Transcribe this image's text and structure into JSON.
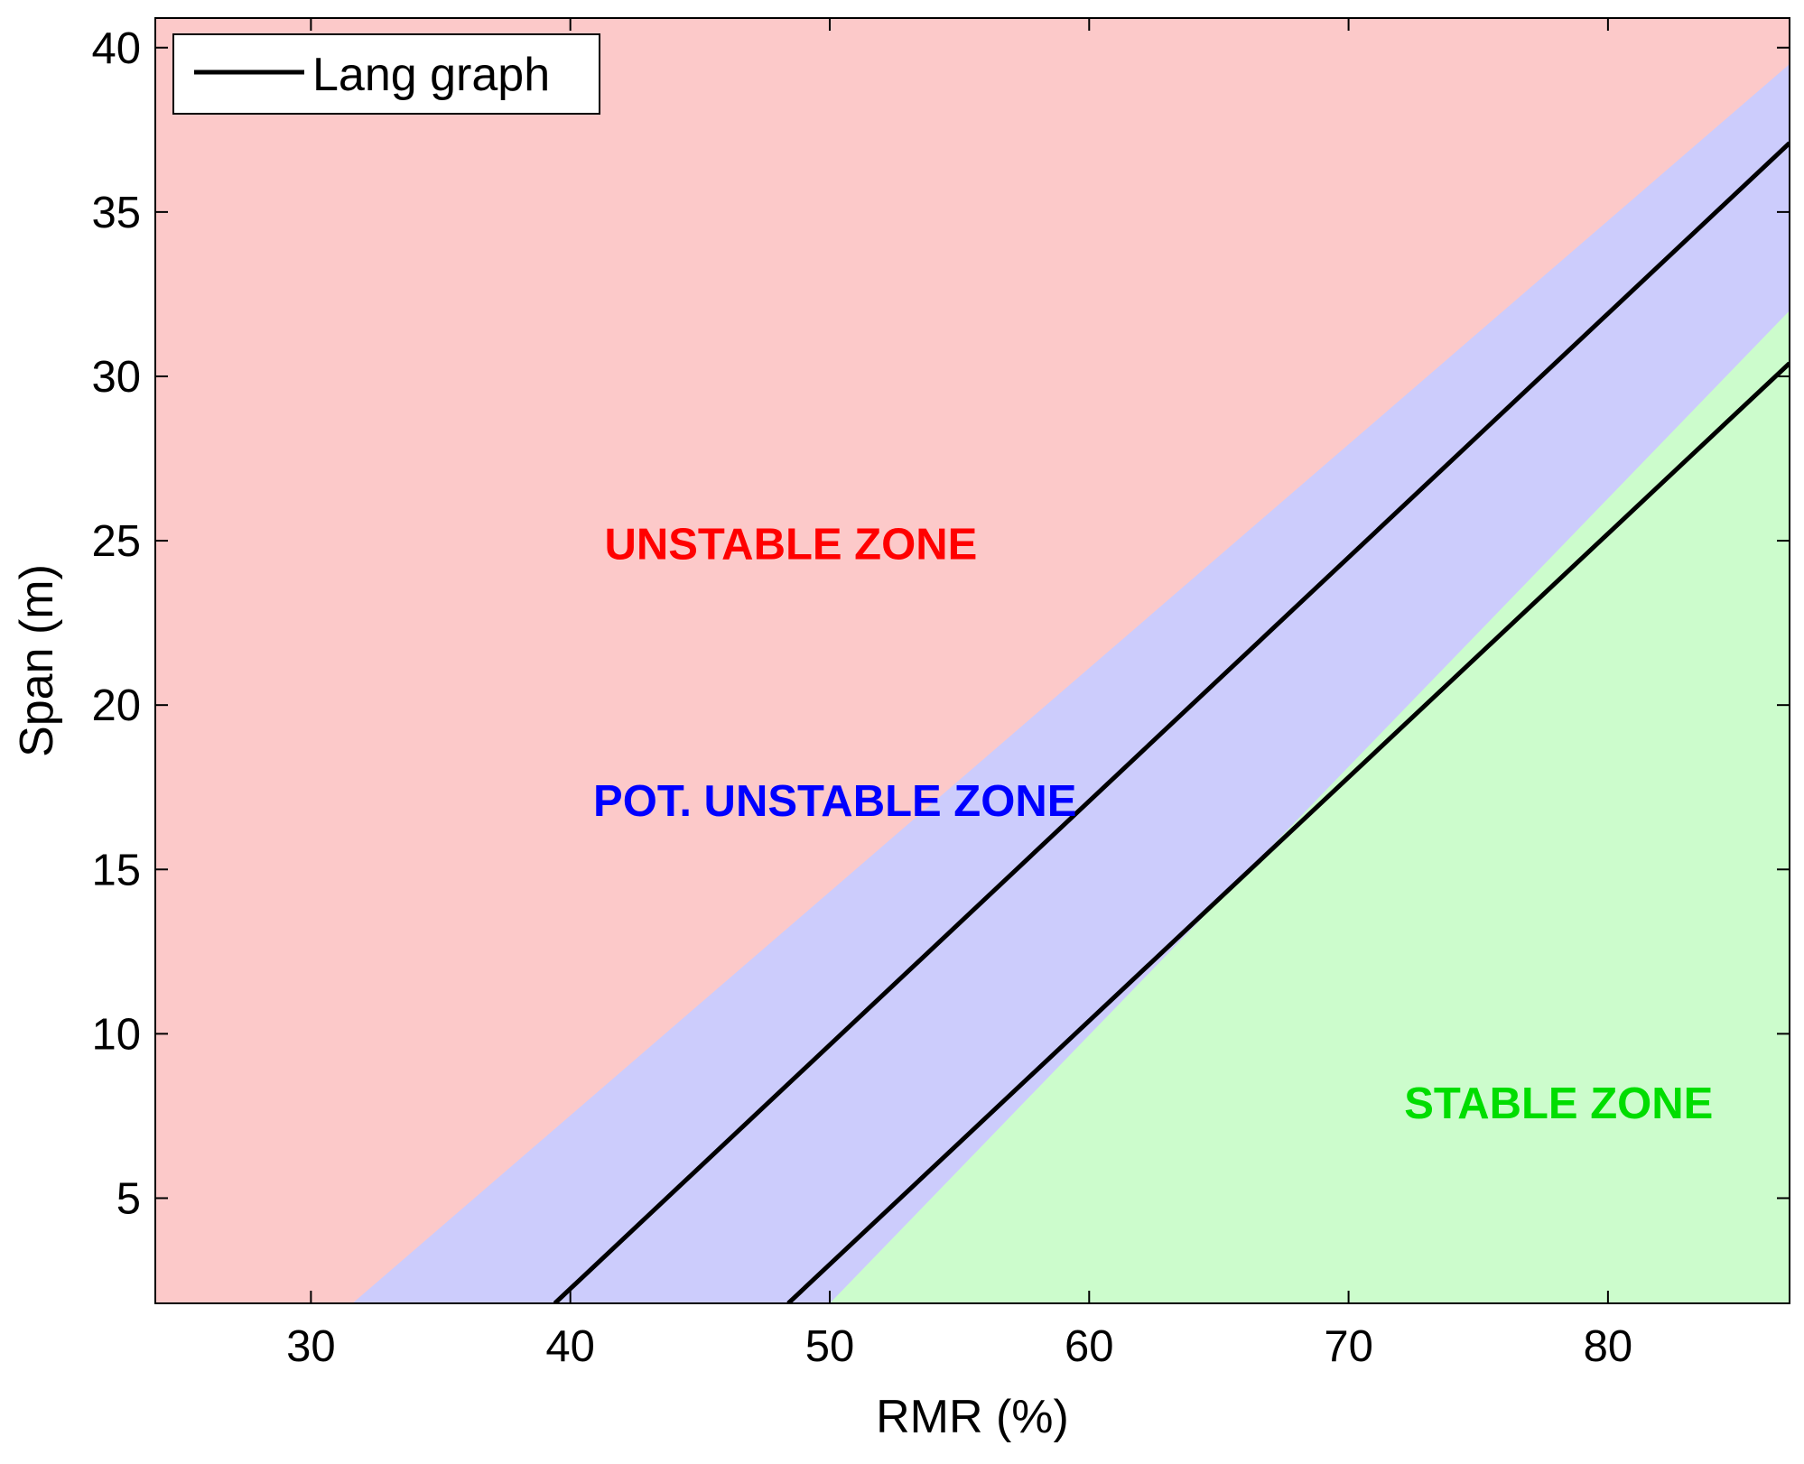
{
  "chart_data": {
    "type": "area",
    "xlabel": "RMR (%)",
    "ylabel": "Span (m)",
    "xlim": [
      24,
      87
    ],
    "ylim": [
      1.8,
      40.9
    ],
    "xticks": [
      30,
      40,
      50,
      60,
      70,
      80
    ],
    "yticks": [
      5,
      10,
      15,
      20,
      25,
      30,
      35,
      40
    ],
    "grid": false,
    "legend": {
      "position": "top-left",
      "entries": [
        {
          "label": "Lang graph",
          "color": "#000000"
        }
      ]
    },
    "series": [
      {
        "name": "Lang graph",
        "color": "#000000",
        "x": [
          39.4,
          87
        ],
        "y": [
          1.8,
          37.1
        ]
      },
      {
        "name": "Lang graph",
        "color": "#000000",
        "x": [
          48.4,
          87
        ],
        "y": [
          1.8,
          30.4
        ]
      }
    ],
    "regions": [
      {
        "label": "UNSTABLE ZONE",
        "fill": "#fcc9c9",
        "text_color": "#ff0000",
        "label_x": 48.5,
        "label_y": 24.9,
        "lower_boundary": {
          "x": [
            31.6,
            87
          ],
          "y": [
            1.8,
            39.5
          ]
        }
      },
      {
        "label": "POT. UNSTABLE ZONE",
        "fill": "#ccccfc",
        "text_color": "#0000ff",
        "label_x": 50.2,
        "label_y": 17.1
      },
      {
        "label": "STABLE ZONE",
        "fill": "#ccfccc",
        "text_color": "#00dd00",
        "label_x": 78.1,
        "label_y": 7.9,
        "upper_boundary": {
          "x": [
            50.0,
            87
          ],
          "y": [
            1.8,
            32.0
          ]
        }
      }
    ]
  }
}
